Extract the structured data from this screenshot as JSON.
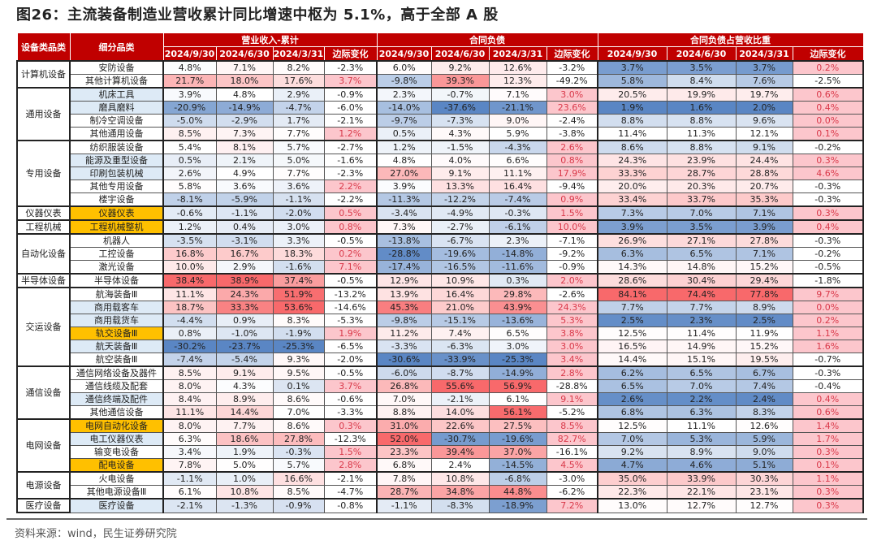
{
  "title": "图26：主流装备制造业营收累计同比增速中枢为 5.1%，高于全部 A 股",
  "source": "资料来源：wind，民生证券研究院",
  "colors": {
    "header_bg": "#c00000",
    "scale_low": "#5a86c4",
    "scale_mid": "#ffffff",
    "scale_high": "#f8696b",
    "margin_pos_bg": "#fcc6cc",
    "margin_pos_text": "#d9394a",
    "highlight_blue": "#ddeaf6",
    "highlight_gold": "#ffc000"
  },
  "header": {
    "col_group": "设备类品类",
    "col_sub": "细分品类",
    "sections": [
      "营业收入-累计",
      "合同负债",
      "合同负债占营收比重"
    ],
    "periods": [
      "2024/9/30",
      "2024/6/30",
      "2024/3/31",
      "边际变化"
    ]
  },
  "groups": [
    {
      "name": "计算机设备",
      "rows": [
        {
          "name": "安防设备",
          "hl": "",
          "v": [
            "4.8%",
            "7.1%",
            "8.2%",
            "-2.3%",
            "6.0%",
            "9.2%",
            "12.6%",
            "-3.2%",
            "3.7%",
            "3.5%",
            "3.7%",
            "0.2%"
          ]
        },
        {
          "name": "其他计算机设备",
          "hl": "",
          "v": [
            "21.7%",
            "18.0%",
            "17.6%",
            "3.7%",
            "-9.8%",
            "39.3%",
            "12.3%",
            "-49.2%",
            "5.8%",
            "8.4%",
            "7.6%",
            "-2.5%"
          ]
        }
      ]
    },
    {
      "name": "通用设备",
      "rows": [
        {
          "name": "机床工具",
          "hl": "blue",
          "v": [
            "3.9%",
            "4.8%",
            "2.9%",
            "-0.9%",
            "2.3%",
            "-0.7%",
            "7.1%",
            "3.0%",
            "20.5%",
            "19.9%",
            "19.7%",
            "0.6%"
          ]
        },
        {
          "name": "磨具磨料",
          "hl": "blue",
          "v": [
            "-20.9%",
            "-14.9%",
            "-4.7%",
            "-6.0%",
            "-14.0%",
            "-37.6%",
            "-21.1%",
            "23.6%",
            "1.9%",
            "1.6%",
            "2.0%",
            "0.4%"
          ]
        },
        {
          "name": "制冷空调设备",
          "hl": "",
          "v": [
            "-5.0%",
            "-2.9%",
            "1.7%",
            "-2.1%",
            "-9.7%",
            "-7.3%",
            "9.0%",
            "-2.4%",
            "8.8%",
            "8.8%",
            "9.6%",
            "0.0%"
          ]
        },
        {
          "name": "其他通用设备",
          "hl": "",
          "v": [
            "8.5%",
            "7.3%",
            "7.7%",
            "1.2%",
            "0.5%",
            "4.3%",
            "5.9%",
            "-3.8%",
            "11.4%",
            "11.3%",
            "12.1%",
            "0.1%"
          ]
        }
      ]
    },
    {
      "name": "专用设备",
      "rows": [
        {
          "name": "纺织服装设备",
          "hl": "",
          "v": [
            "5.4%",
            "8.1%",
            "5.7%",
            "-2.7%",
            "1.2%",
            "-1.5%",
            "-4.3%",
            "2.6%",
            "8.6%",
            "8.8%",
            "9.1%",
            "-0.2%"
          ]
        },
        {
          "name": "能源及重型设备",
          "hl": "blue",
          "v": [
            "0.5%",
            "2.1%",
            "5.0%",
            "-1.6%",
            "4.8%",
            "4.0%",
            "6.6%",
            "0.8%",
            "24.3%",
            "23.9%",
            "24.4%",
            "0.3%"
          ]
        },
        {
          "name": "印刷包装机械",
          "hl": "blue",
          "v": [
            "2.6%",
            "4.9%",
            "7.7%",
            "-2.3%",
            "27.0%",
            "9.1%",
            "11.1%",
            "17.9%",
            "33.3%",
            "28.7%",
            "28.8%",
            "4.6%"
          ]
        },
        {
          "name": "其他专用设备",
          "hl": "",
          "v": [
            "5.8%",
            "3.6%",
            "3.6%",
            "2.2%",
            "3.9%",
            "13.3%",
            "16.4%",
            "-9.4%",
            "20.0%",
            "20.3%",
            "20.7%",
            "-0.3%"
          ]
        },
        {
          "name": "楼宇设备",
          "hl": "",
          "v": [
            "-8.1%",
            "-5.9%",
            "-1.1%",
            "-2.2%",
            "-11.3%",
            "-12.2%",
            "-7.4%",
            "0.9%",
            "33.4%",
            "33.7%",
            "35.3%",
            "-0.3%"
          ]
        }
      ]
    },
    {
      "name": "仪器仪表",
      "rows": [
        {
          "name": "仪器仪表",
          "hl": "gold",
          "v": [
            "-0.6%",
            "-1.1%",
            "-2.0%",
            "0.5%",
            "-3.4%",
            "-4.9%",
            "-0.3%",
            "1.5%",
            "7.3%",
            "7.0%",
            "7.1%",
            "0.3%"
          ]
        }
      ]
    },
    {
      "name": "工程机械",
      "rows": [
        {
          "name": "工程机械整机",
          "hl": "gold",
          "v": [
            "1.2%",
            "0.4%",
            "3.0%",
            "0.8%",
            "7.3%",
            "-2.7%",
            "-6.1%",
            "10.0%",
            "3.9%",
            "3.5%",
            "3.9%",
            "0.4%"
          ]
        }
      ]
    },
    {
      "name": "自动化设备",
      "rows": [
        {
          "name": "机器人",
          "hl": "",
          "v": [
            "-3.5%",
            "-3.1%",
            "3.3%",
            "-0.5%",
            "-13.8%",
            "-6.7%",
            "2.3%",
            "-7.1%",
            "26.9%",
            "27.1%",
            "27.8%",
            "-0.3%"
          ]
        },
        {
          "name": "工控设备",
          "hl": "",
          "v": [
            "16.8%",
            "16.7%",
            "18.3%",
            "0.2%",
            "-28.8%",
            "-19.6%",
            "-14.8%",
            "-9.2%",
            "6.3%",
            "6.5%",
            "7.1%",
            "-0.2%"
          ]
        },
        {
          "name": "激光设备",
          "hl": "",
          "v": [
            "10.0%",
            "2.9%",
            "-1.6%",
            "7.1%",
            "-17.4%",
            "-16.5%",
            "-11.6%",
            "-0.9%",
            "14.3%",
            "14.8%",
            "15.2%",
            "-0.5%"
          ]
        }
      ]
    },
    {
      "name": "半导体设备",
      "rows": [
        {
          "name": "半导体设备",
          "hl": "",
          "v": [
            "38.4%",
            "38.9%",
            "37.4%",
            "-0.5%",
            "12.9%",
            "10.9%",
            "0.3%",
            "2.0%",
            "28.6%",
            "30.4%",
            "29.4%",
            "-1.8%"
          ]
        }
      ]
    },
    {
      "name": "交运设备",
      "rows": [
        {
          "name": "航海装备Ⅲ",
          "hl": "",
          "v": [
            "11.1%",
            "24.3%",
            "51.9%",
            "-13.2%",
            "13.9%",
            "16.4%",
            "29.8%",
            "-2.6%",
            "84.1%",
            "74.4%",
            "77.8%",
            "9.7%"
          ]
        },
        {
          "name": "商用载客车",
          "hl": "blue",
          "v": [
            "18.7%",
            "33.3%",
            "53.6%",
            "-14.6%",
            "45.3%",
            "21.0%",
            "43.9%",
            "24.3%",
            "7.7%",
            "7.7%",
            "8.9%",
            "0.0%"
          ]
        },
        {
          "name": "商用载货车",
          "hl": "blue",
          "v": [
            "-4.4%",
            "0.9%",
            "8.3%",
            "-5.3%",
            "-9.8%",
            "-15.1%",
            "-13.6%",
            "5.3%",
            "2.5%",
            "2.3%",
            "2.5%",
            "0.2%"
          ]
        },
        {
          "name": "轨交设备Ⅲ",
          "hl": "gold",
          "v": [
            "0.8%",
            "-1.0%",
            "-1.9%",
            "1.9%",
            "11.2%",
            "7.4%",
            "6.5%",
            "3.8%",
            "12.5%",
            "11.4%",
            "11.9%",
            "1.1%"
          ]
        },
        {
          "name": "航天装备Ⅲ",
          "hl": "blue",
          "v": [
            "-30.2%",
            "-23.7%",
            "-25.3%",
            "-6.5%",
            "-3.3%",
            "-6.3%",
            "3.0%",
            "3.0%",
            "16.5%",
            "14.9%",
            "15.2%",
            "1.6%"
          ]
        },
        {
          "name": "航空装备Ⅲ",
          "hl": "",
          "v": [
            "-7.4%",
            "-5.4%",
            "9.3%",
            "-2.0%",
            "-30.6%",
            "-33.9%",
            "-25.3%",
            "3.4%",
            "14.4%",
            "15.1%",
            "19.5%",
            "-0.7%"
          ]
        }
      ]
    },
    {
      "name": "通信设备",
      "rows": [
        {
          "name": "通信网络设备及器件",
          "hl": "",
          "v": [
            "8.5%",
            "9.1%",
            "9.5%",
            "-0.5%",
            "-6.0%",
            "-8.7%",
            "-14.9%",
            "2.8%",
            "6.2%",
            "6.5%",
            "6.7%",
            "-0.3%"
          ]
        },
        {
          "name": "通信线缆及配套",
          "hl": "",
          "v": [
            "8.0%",
            "4.3%",
            "0.1%",
            "3.7%",
            "26.8%",
            "55.6%",
            "56.9%",
            "-28.8%",
            "6.5%",
            "7.0%",
            "7.4%",
            "-0.4%"
          ]
        },
        {
          "name": "通信终端及配件",
          "hl": "blue",
          "v": [
            "8.4%",
            "8.9%",
            "8.6%",
            "-0.6%",
            "7.0%",
            "-2.1%",
            "6.1%",
            "9.1%",
            "2.6%",
            "2.2%",
            "2.4%",
            "0.4%"
          ]
        },
        {
          "name": "其他通信设备",
          "hl": "",
          "v": [
            "11.1%",
            "14.4%",
            "7.0%",
            "-3.3%",
            "8.8%",
            "14.0%",
            "56.1%",
            "-5.2%",
            "6.8%",
            "6.3%",
            "8.3%",
            "0.6%"
          ]
        }
      ]
    },
    {
      "name": "电网设备",
      "rows": [
        {
          "name": "电网自动化设备",
          "hl": "gold",
          "v": [
            "8.0%",
            "7.7%",
            "8.6%",
            "0.3%",
            "31.0%",
            "22.6%",
            "27.5%",
            "8.5%",
            "12.5%",
            "11.1%",
            "12.6%",
            "1.4%"
          ]
        },
        {
          "name": "电工仪器仪表",
          "hl": "blue",
          "v": [
            "6.3%",
            "18.6%",
            "27.8%",
            "-12.3%",
            "52.0%",
            "-30.7%",
            "-19.6%",
            "82.7%",
            "7.0%",
            "5.3%",
            "5.9%",
            "1.7%"
          ]
        },
        {
          "name": "输变电设备",
          "hl": "",
          "v": [
            "3.4%",
            "1.9%",
            "-0.3%",
            "1.5%",
            "23.3%",
            "39.4%",
            "37.0%",
            "-16.1%",
            "9.2%",
            "8.9%",
            "9.0%",
            "0.3%"
          ]
        },
        {
          "name": "配电设备",
          "hl": "gold",
          "v": [
            "7.8%",
            "5.0%",
            "5.7%",
            "2.8%",
            "6.8%",
            "2.4%",
            "-14.5%",
            "4.5%",
            "4.7%",
            "4.6%",
            "5.1%",
            "0.1%"
          ]
        }
      ]
    },
    {
      "name": "电源设备",
      "rows": [
        {
          "name": "火电设备",
          "hl": "",
          "v": [
            "-1.1%",
            "1.0%",
            "16.6%",
            "-2.1%",
            "7.8%",
            "10.8%",
            "-6.8%",
            "-3.0%",
            "35.0%",
            "33.9%",
            "30.3%",
            "1.1%"
          ]
        },
        {
          "name": "其他电源设备Ⅲ",
          "hl": "",
          "v": [
            "6.1%",
            "10.8%",
            "8.5%",
            "-4.7%",
            "28.7%",
            "34.8%",
            "44.8%",
            "-6.2%",
            "22.3%",
            "22.1%",
            "23.1%",
            "0.3%"
          ]
        }
      ]
    },
    {
      "name": "医疗设备",
      "rows": [
        {
          "name": "医疗设备",
          "hl": "blue",
          "v": [
            "-2.1%",
            "-1.3%",
            "-0.9%",
            "-0.8%",
            "-1.1%",
            "-8.3%",
            "-18.9%",
            "7.2%",
            "13.0%",
            "12.7%",
            "12.7%",
            "0.3%"
          ]
        }
      ]
    }
  ]
}
